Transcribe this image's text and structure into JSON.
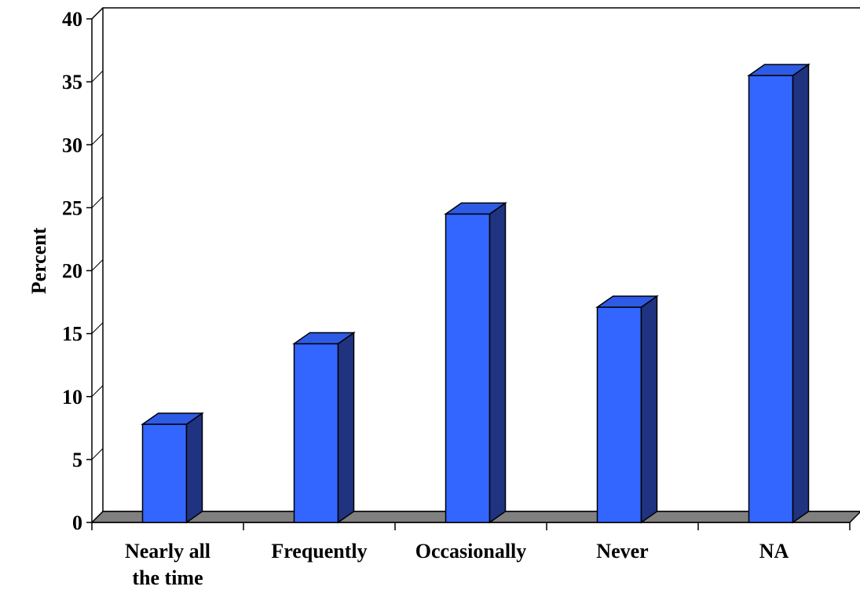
{
  "chart_data": {
    "type": "bar",
    "style": "3d-column",
    "title": "",
    "xlabel": "",
    "ylabel": "Percent",
    "ylim": [
      0,
      40
    ],
    "yticks": [
      "0",
      "5",
      "10",
      "15",
      "20",
      "25",
      "30",
      "35",
      "40"
    ],
    "categories": [
      [
        "Nearly all",
        "the time"
      ],
      [
        "Frequently"
      ],
      [
        "Occasionally"
      ],
      [
        "Never"
      ],
      [
        "NA"
      ]
    ],
    "series": [
      {
        "values": [
          7.8,
          14.2,
          24.5,
          17.1,
          35.5
        ]
      }
    ],
    "grid": false,
    "legend": "none",
    "colors": {
      "bar_front": "#3366FF",
      "bar_side": "#1F3380",
      "bar_top": "#2E5BE6",
      "floor": "#808080",
      "axis": "#000000",
      "background": "#FFFFFF"
    }
  }
}
